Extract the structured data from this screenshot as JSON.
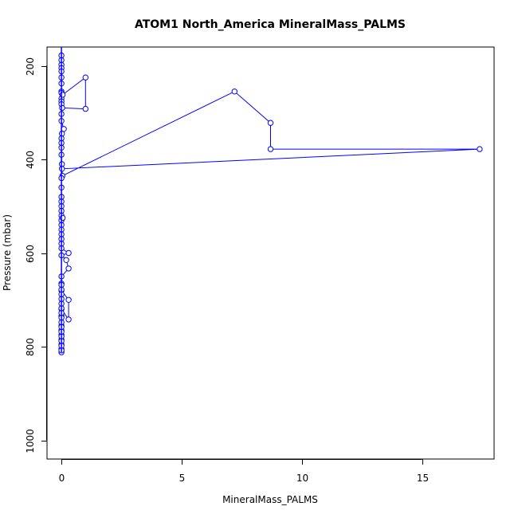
{
  "chart_data": {
    "type": "line",
    "title": "ATOM1 North_America MineralMass_PALMS",
    "xlabel": "MineralMass_PALMS",
    "ylabel": "Pressure (mbar)",
    "xlim": [
      -0.6,
      18.0
    ],
    "ylim": [
      1040,
      160
    ],
    "y_reversed": true,
    "xticks": [
      0,
      5,
      10,
      15
    ],
    "yticks": [
      200,
      400,
      600,
      800,
      1000
    ],
    "grid": false,
    "marker": "open-circle",
    "color": "#0000ff",
    "series": [
      {
        "x": [
          0,
          0,
          0,
          0,
          0,
          0,
          0,
          0,
          0,
          0,
          0,
          0,
          0.05,
          1.0,
          1.0,
          0.03,
          0,
          0,
          0.1,
          0.02,
          0,
          0,
          0,
          0,
          0.02,
          0.04,
          7.2,
          8.7,
          8.7,
          17.4,
          0.02,
          0,
          0,
          0,
          0,
          0,
          0,
          0,
          0,
          0,
          0,
          0.05,
          0,
          0,
          0,
          0,
          0.3,
          0,
          0.2,
          0.3,
          0,
          0,
          0,
          0.3,
          0.3,
          0,
          0,
          0,
          0,
          0,
          0,
          0,
          0,
          0,
          0,
          0,
          0,
          0,
          0,
          0,
          0,
          0,
          0,
          0,
          0,
          0,
          0,
          0,
          0,
          0
        ],
        "y": [
          178,
          188,
          198,
          205,
          212,
          225,
          238,
          255,
          258,
          270,
          276,
          282,
          262,
          225,
          292,
          290,
          303,
          318,
          335,
          345,
          355,
          365,
          375,
          390,
          410,
          435,
          255,
          322,
          378,
          378,
          420,
          440,
          460,
          480,
          490,
          500,
          510,
          520,
          530,
          540,
          550,
          525,
          560,
          570,
          580,
          590,
          600,
          605,
          615,
          633,
          650,
          665,
          680,
          700,
          742,
          720,
          735,
          755,
          765,
          775,
          785,
          795,
          805,
          810,
          812,
          808,
          798,
          788,
          778,
          768,
          758,
          748,
          738,
          728,
          718,
          708,
          698,
          688,
          678,
          668
        ]
      }
    ]
  }
}
